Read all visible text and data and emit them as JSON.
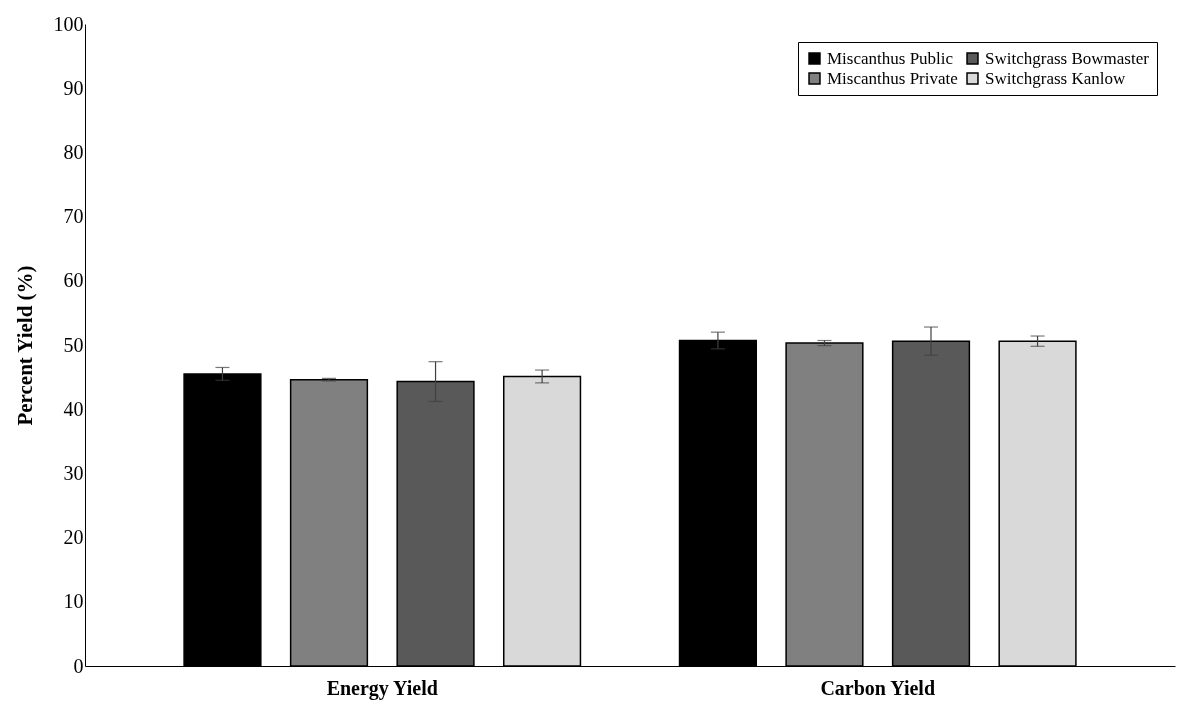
{
  "chart_data": {
    "type": "bar",
    "ylabel": "Percent Yield (%)",
    "categories": [
      "Energy Yield",
      "Carbon Yield"
    ],
    "ylim": [
      0,
      100
    ],
    "yticks": [
      0,
      10,
      20,
      30,
      40,
      50,
      60,
      70,
      80,
      90,
      100
    ],
    "grid": false,
    "legend": "top right",
    "series": [
      {
        "name": "Miscanthus Public",
        "color": "#000000",
        "values": [
          45.5,
          50.7
        ],
        "errors": [
          1.0,
          1.3
        ]
      },
      {
        "name": "Miscanthus Private",
        "color": "#808080",
        "values": [
          44.6,
          50.3
        ],
        "errors": [
          0.2,
          0.4
        ]
      },
      {
        "name": "Switchgrass Bowmaster",
        "color": "#595959",
        "values": [
          44.3,
          50.6
        ],
        "errors": [
          3.1,
          2.2
        ]
      },
      {
        "name": "Switchgrass Kanlow",
        "color": "#d9d9d9",
        "values": [
          45.1,
          50.6
        ],
        "errors": [
          1.0,
          0.8
        ]
      }
    ]
  }
}
